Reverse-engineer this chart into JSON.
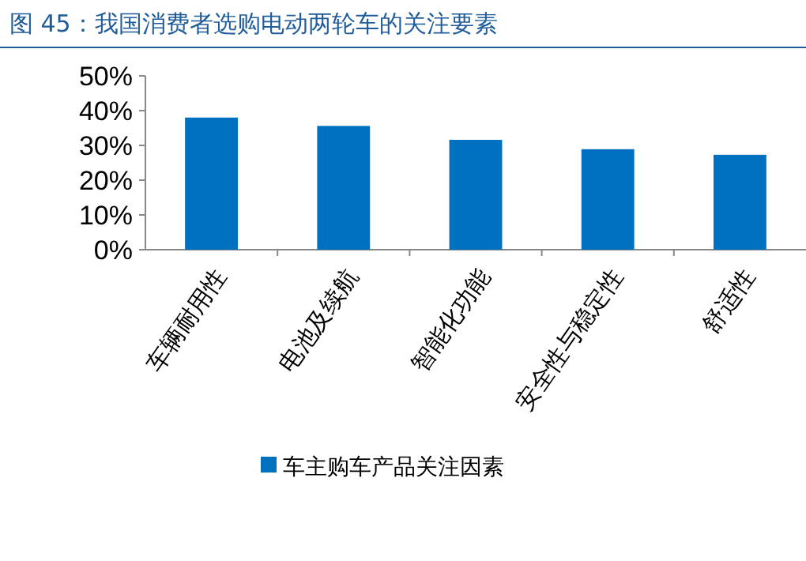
{
  "chart_data": {
    "type": "bar",
    "title": "图 45：我国消费者选购电动两轮车的关注要素",
    "categories": [
      "车辆耐用性",
      "电池及续航",
      "智能化功能",
      "安全性与稳定性",
      "舒适性"
    ],
    "series": [
      {
        "name": "车主购车产品关注因素",
        "color": "#0070c0",
        "values": [
          38,
          35.6,
          31.6,
          28.9,
          27.3
        ]
      }
    ],
    "ylim": [
      0,
      50
    ],
    "yticks": [
      {
        "value": 0,
        "label": "0%"
      },
      {
        "value": 10,
        "label": "10%"
      },
      {
        "value": 20,
        "label": "20%"
      },
      {
        "value": 30,
        "label": "30%"
      },
      {
        "value": 40,
        "label": "40%"
      },
      {
        "value": 50,
        "label": "50%"
      }
    ],
    "legend": "bottom"
  }
}
